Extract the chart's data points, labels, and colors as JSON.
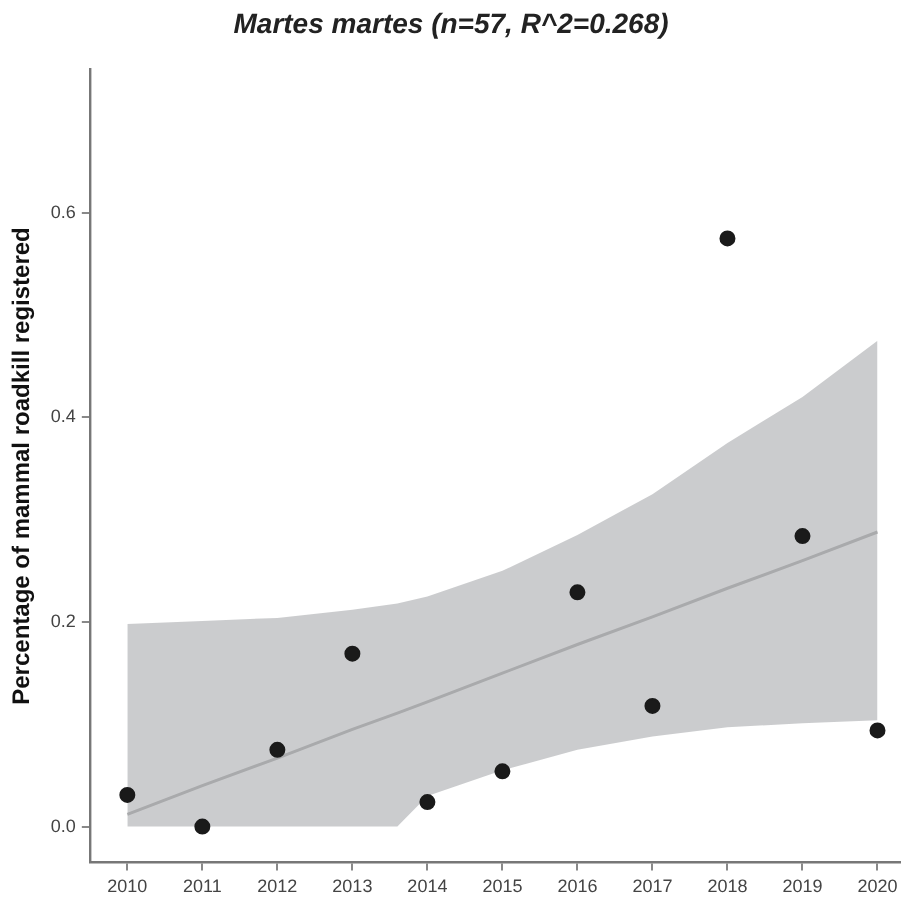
{
  "chart_data": {
    "type": "scatter",
    "title": "Martes martes (n=57, R^2=0.268)",
    "ylabel": "Percentage of mammal roadkill registered",
    "x": [
      2010,
      2011,
      2012,
      2013,
      2014,
      2015,
      2016,
      2017,
      2018,
      2019,
      2020
    ],
    "series": [
      {
        "color": "#1a1a1a",
        "marker": "circle",
        "values": [
          0.031,
          0,
          0.075,
          0.169,
          0.024,
          0.054,
          0.229,
          0.118,
          0.575,
          0.284,
          0.094
        ]
      },
      {
        "type": "line",
        "marker": "none",
        "color": "#b3b3b3",
        "x": [
          2010,
          2011,
          2012,
          2013,
          2013.6,
          2014,
          2015,
          2016,
          2017,
          2018,
          2019,
          2020
        ],
        "values": [
          0.012,
          0.04,
          0.067,
          0.095,
          0.111,
          0.122,
          0.15,
          0.178,
          0.205,
          0.233,
          0.26,
          0.288
        ],
        "lower": [
          0,
          0,
          0,
          0,
          0,
          0.03,
          0.055,
          0.075,
          0.088,
          0.097,
          0.101,
          0.104
        ],
        "upper": [
          0.198,
          0.201,
          0.204,
          0.212,
          0.218,
          0.225,
          0.25,
          0.285,
          0.325,
          0.375,
          0.42,
          0.475
        ]
      }
    ],
    "xlim": [
      2009.5,
      2020.3
    ],
    "xticks": [
      2010,
      2011,
      2012,
      2013,
      2014,
      2015,
      2016,
      2017,
      2018,
      2019,
      2020
    ],
    "ylim": [
      -0.035,
      0.74
    ],
    "yticks": [
      {
        "value": 0,
        "label": "0.0"
      },
      {
        "value": 0.2,
        "label": "0.2"
      },
      {
        "value": 0.4,
        "label": "0.4"
      },
      {
        "value": 0.6,
        "label": "0.6"
      }
    ],
    "grid": false,
    "legend": false
  }
}
